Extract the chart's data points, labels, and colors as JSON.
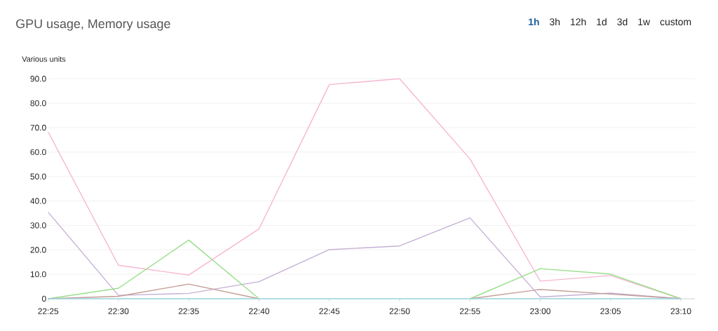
{
  "chart_data": {
    "type": "line",
    "title": "GPU usage, Memory usage",
    "ylabel": "Various units",
    "annotations": [
      "1h",
      "3h",
      "12h",
      "1d",
      "3d",
      "1w",
      "custom"
    ],
    "x": [
      22.4167,
      22.5,
      22.5833,
      22.6667,
      22.75,
      22.8333,
      22.9167,
      23.0,
      23.0833,
      23.1667
    ],
    "xlim": [
      22.4167,
      23.1833
    ],
    "xticks": [
      {
        "value": 22.4167,
        "label": "22:25"
      },
      {
        "value": 22.5,
        "label": "22:30"
      },
      {
        "value": 22.5833,
        "label": "22:35"
      },
      {
        "value": 22.6667,
        "label": "22:40"
      },
      {
        "value": 22.75,
        "label": "22:45"
      },
      {
        "value": 22.8333,
        "label": "22:50"
      },
      {
        "value": 22.9167,
        "label": "22:55"
      },
      {
        "value": 23.0,
        "label": "23:00"
      },
      {
        "value": 23.0833,
        "label": "23:05"
      },
      {
        "value": 23.1667,
        "label": "23:10"
      }
    ],
    "ylim": [
      0,
      90
    ],
    "yticks": [
      0,
      {
        "value": 10,
        "label": "10.0"
      },
      {
        "value": 20,
        "label": "20.0"
      },
      {
        "value": 30,
        "label": "30.0"
      },
      {
        "value": 40,
        "label": "40.0"
      },
      {
        "value": 50,
        "label": "50.0"
      },
      {
        "value": 60,
        "label": "60.0"
      },
      {
        "value": 70,
        "label": "70.0"
      },
      {
        "value": 80,
        "label": "80.0"
      },
      {
        "value": 90,
        "label": "90.0"
      }
    ],
    "grid": "y",
    "marker": "none",
    "line_style": "solid",
    "series": [
      {
        "color": "#f7b6d2",
        "values": [
          68.2,
          13.7,
          9.7,
          28.6,
          87.6,
          90,
          57.2,
          7.2,
          9.5,
          0
        ]
      },
      {
        "color": "#c5b0d5",
        "values": [
          35.4,
          1.4,
          2.2,
          7.0,
          20.1,
          21.6,
          33.1,
          0.7,
          2.3,
          0
        ]
      },
      {
        "color": "#98df8a",
        "values": [
          0,
          4.3,
          24.0,
          0,
          null,
          null,
          0,
          12.3,
          10.1,
          0
        ]
      },
      {
        "color": "#c49c94",
        "values": [
          0,
          1.0,
          6.0,
          0,
          null,
          null,
          0,
          3.8,
          1.9,
          0
        ]
      },
      {
        "color": "#9edae5",
        "values": [
          0,
          0,
          0,
          0,
          0,
          0,
          0,
          0,
          0,
          0
        ]
      }
    ]
  }
}
